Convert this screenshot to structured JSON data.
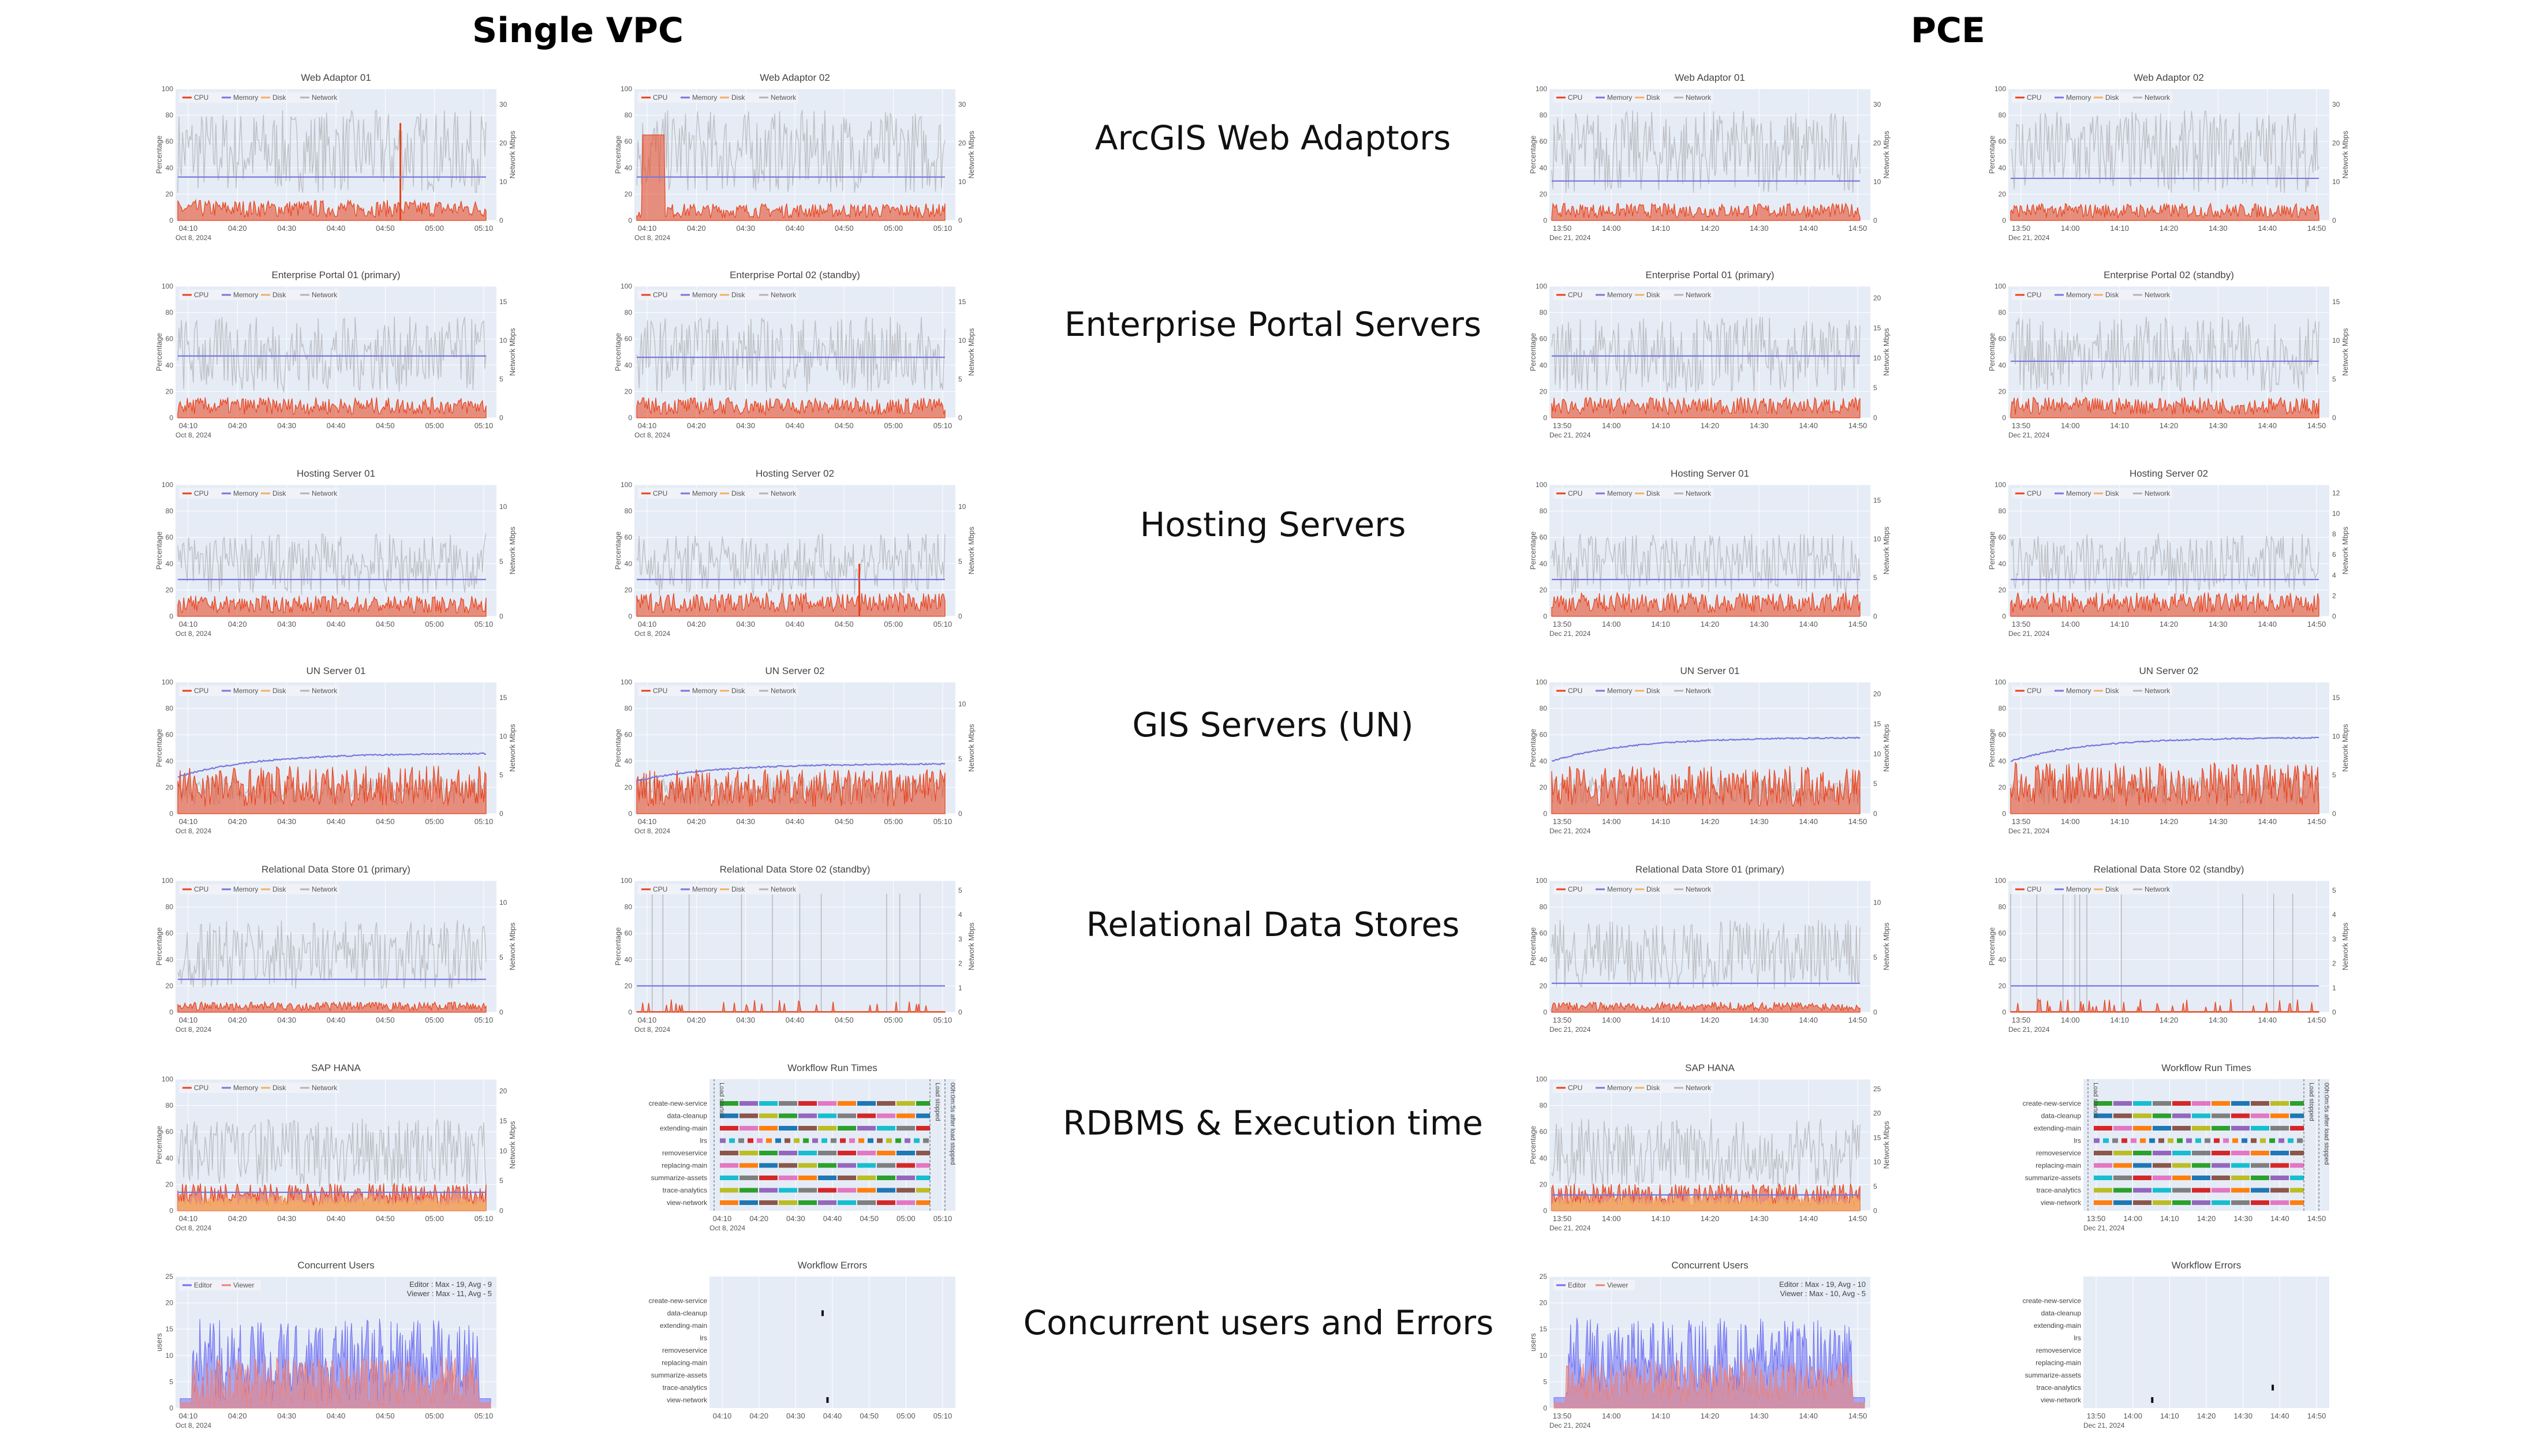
{
  "headers": {
    "left": "Single VPC",
    "right": "PCE"
  },
  "row_labels": [
    "ArcGIS Web Adaptors",
    "Enterprise Portal Servers",
    "Hosting Servers",
    "GIS Servers (UN)",
    "Relational Data Stores",
    "RDBMS & Execution time",
    "Concurrent users and Errors"
  ],
  "legend_labels": [
    "CPU",
    "Memory",
    "Disk",
    "Network"
  ],
  "axis_labels": {
    "y_left": "Percentage",
    "y_right": "Network Mbps",
    "users": "users"
  },
  "series_colors": {
    "cpu": "#e8421b",
    "memory": "#7777dd",
    "disk": "#f2b066",
    "network": "#b4b4b8",
    "editor": "#6f6ff2",
    "viewer": "#ef7f73"
  },
  "workflows": [
    "create-new-service",
    "data-cleanup",
    "extending-main",
    "lrs",
    "removeservice",
    "replacing-main",
    "summarize-assets",
    "trace-analytics",
    "view-network"
  ],
  "workflow_annotations": [
    "Load started",
    "Load stopped",
    "00h:0m:5s after load stopped"
  ],
  "chart_data": [
    {
      "type": "line",
      "title": "Web Adaptor 01",
      "env": "vpc",
      "x_ticks": [
        "04:10",
        "04:20",
        "04:30",
        "04:40",
        "04:50",
        "05:00",
        "05:10"
      ],
      "date": "Oct 8, 2024",
      "ylim": [
        0,
        100
      ],
      "y_ticks": [
        "0",
        "20",
        "40",
        "60",
        "80",
        "100"
      ],
      "y2_ticks": [
        "0",
        "10",
        "20",
        "30"
      ],
      "cpu_level": 12,
      "memory_level": 33,
      "network_level": 60,
      "spikes": [
        74
      ]
    },
    {
      "type": "line",
      "title": "Web Adaptor 02",
      "env": "vpc",
      "x_ticks": [
        "04:10",
        "04:20",
        "04:30",
        "04:40",
        "04:50",
        "05:00",
        "05:10"
      ],
      "date": "Oct 8, 2024",
      "ylim": [
        0,
        100
      ],
      "y_ticks": [
        "0",
        "20",
        "40",
        "60",
        "80",
        "100"
      ],
      "y2_ticks": [
        "0",
        "10",
        "20",
        "30"
      ],
      "cpu_level": 10,
      "memory_level": 33,
      "network_level": 60,
      "cpu_burst": 65
    },
    {
      "type": "line",
      "title": "Web Adaptor 01",
      "env": "pce",
      "x_ticks": [
        "13:50",
        "14:00",
        "14:10",
        "14:20",
        "14:30",
        "14:40",
        "14:50"
      ],
      "date": "Dec 21, 2024",
      "ylim": [
        0,
        100
      ],
      "y_ticks": [
        "0",
        "20",
        "40",
        "60",
        "80",
        "100"
      ],
      "y2_ticks": [
        "0",
        "10",
        "20",
        "30"
      ],
      "cpu_level": 10,
      "memory_level": 30,
      "network_level": 60
    },
    {
      "type": "line",
      "title": "Web Adaptor 02",
      "env": "pce",
      "x_ticks": [
        "13:50",
        "14:00",
        "14:10",
        "14:20",
        "14:30",
        "14:40",
        "14:50"
      ],
      "date": "Dec 21, 2024",
      "ylim": [
        0,
        100
      ],
      "y_ticks": [
        "0",
        "20",
        "40",
        "60",
        "80",
        "100"
      ],
      "y2_ticks": [
        "0",
        "10",
        "20",
        "30"
      ],
      "cpu_level": 10,
      "memory_level": 32,
      "network_level": 60
    },
    {
      "type": "line",
      "title": "Enterprise Portal 01 (primary)",
      "env": "vpc",
      "x_ticks": [
        "04:10",
        "04:20",
        "04:30",
        "04:40",
        "04:50",
        "05:00",
        "05:10"
      ],
      "date": "Oct 8, 2024",
      "ylim": [
        0,
        100
      ],
      "y_ticks": [
        "0",
        "20",
        "40",
        "60",
        "80",
        "100"
      ],
      "y2_ticks": [
        "0",
        "5",
        "10",
        "15"
      ],
      "cpu_level": 12,
      "memory_level": 47,
      "network_level": 55
    },
    {
      "type": "line",
      "title": "Enterprise Portal 02 (standby)",
      "env": "vpc",
      "x_ticks": [
        "04:10",
        "04:20",
        "04:30",
        "04:40",
        "04:50",
        "05:00",
        "05:10"
      ],
      "date": "Oct 8, 2024",
      "ylim": [
        0,
        100
      ],
      "y_ticks": [
        "0",
        "20",
        "40",
        "60",
        "80",
        "100"
      ],
      "y2_ticks": [
        "0",
        "5",
        "10",
        "15"
      ],
      "cpu_level": 12,
      "memory_level": 46,
      "network_level": 55
    },
    {
      "type": "line",
      "title": "Enterprise Portal 01 (primary)",
      "env": "pce",
      "x_ticks": [
        "13:50",
        "14:00",
        "14:10",
        "14:20",
        "14:30",
        "14:40",
        "14:50"
      ],
      "date": "Dec 21, 2024",
      "ylim": [
        0,
        100
      ],
      "y_ticks": [
        "0",
        "20",
        "40",
        "60",
        "80",
        "100"
      ],
      "y2_ticks": [
        "0",
        "5",
        "10",
        "15",
        "20"
      ],
      "cpu_level": 12,
      "memory_level": 47,
      "network_level": 55
    },
    {
      "type": "line",
      "title": "Enterprise Portal 02 (standby)",
      "env": "pce",
      "x_ticks": [
        "13:50",
        "14:00",
        "14:10",
        "14:20",
        "14:30",
        "14:40",
        "14:50"
      ],
      "date": "Dec 21, 2024",
      "ylim": [
        0,
        100
      ],
      "y_ticks": [
        "0",
        "20",
        "40",
        "60",
        "80",
        "100"
      ],
      "y2_ticks": [
        "0",
        "5",
        "10",
        "15"
      ],
      "cpu_level": 12,
      "memory_level": 43,
      "network_level": 55
    },
    {
      "type": "line",
      "title": "Hosting Server 01",
      "env": "vpc",
      "x_ticks": [
        "04:10",
        "04:20",
        "04:30",
        "04:40",
        "04:50",
        "05:00",
        "05:10"
      ],
      "date": "Oct 8, 2024",
      "ylim": [
        0,
        100
      ],
      "y_ticks": [
        "0",
        "20",
        "40",
        "60",
        "80",
        "100"
      ],
      "y2_ticks": [
        "0",
        "5",
        "10"
      ],
      "cpu_level": 12,
      "memory_level": 28,
      "network_level": 45
    },
    {
      "type": "line",
      "title": "Hosting Server 02",
      "env": "vpc",
      "x_ticks": [
        "04:10",
        "04:20",
        "04:30",
        "04:40",
        "04:50",
        "05:00",
        "05:10"
      ],
      "date": "Oct 8, 2024",
      "ylim": [
        0,
        100
      ],
      "y_ticks": [
        "0",
        "20",
        "40",
        "60",
        "80",
        "100"
      ],
      "y2_ticks": [
        "0",
        "5",
        "10"
      ],
      "cpu_level": 14,
      "memory_level": 28,
      "network_level": 45,
      "spikes": [
        40
      ]
    },
    {
      "type": "line",
      "title": "Hosting Server 01",
      "env": "pce",
      "x_ticks": [
        "13:50",
        "14:00",
        "14:10",
        "14:20",
        "14:30",
        "14:40",
        "14:50"
      ],
      "date": "Dec 21, 2024",
      "ylim": [
        0,
        100
      ],
      "y_ticks": [
        "0",
        "20",
        "40",
        "60",
        "80",
        "100"
      ],
      "y2_ticks": [
        "0",
        "5",
        "10",
        "15"
      ],
      "cpu_level": 14,
      "memory_level": 28,
      "network_level": 45
    },
    {
      "type": "line",
      "title": "Hosting Server 02",
      "env": "pce",
      "x_ticks": [
        "13:50",
        "14:00",
        "14:10",
        "14:20",
        "14:30",
        "14:40",
        "14:50"
      ],
      "date": "Dec 21, 2024",
      "ylim": [
        0,
        100
      ],
      "y_ticks": [
        "0",
        "20",
        "40",
        "60",
        "80",
        "100"
      ],
      "y2_ticks": [
        "0",
        "2",
        "4",
        "6",
        "8",
        "10",
        "12"
      ],
      "cpu_level": 14,
      "memory_level": 28,
      "network_level": 45
    },
    {
      "type": "line",
      "title": "UN Server 01",
      "env": "vpc",
      "x_ticks": [
        "04:10",
        "04:20",
        "04:30",
        "04:40",
        "04:50",
        "05:00",
        "05:10"
      ],
      "date": "Oct 8, 2024",
      "ylim": [
        0,
        100
      ],
      "y_ticks": [
        "0",
        "20",
        "40",
        "60",
        "80",
        "100"
      ],
      "y2_ticks": [
        "0",
        "5",
        "10",
        "15"
      ],
      "cpu_level": 28,
      "memory_start": 28,
      "memory_end": 46,
      "network_level": 20
    },
    {
      "type": "line",
      "title": "UN Server 02",
      "env": "vpc",
      "x_ticks": [
        "04:10",
        "04:20",
        "04:30",
        "04:40",
        "04:50",
        "05:00",
        "05:10"
      ],
      "date": "Oct 8, 2024",
      "ylim": [
        0,
        100
      ],
      "y_ticks": [
        "0",
        "20",
        "40",
        "60",
        "80",
        "100"
      ],
      "y2_ticks": [
        "0",
        "5",
        "10"
      ],
      "cpu_level": 26,
      "memory_start": 25,
      "memory_end": 38,
      "network_level": 20
    },
    {
      "type": "line",
      "title": "UN Server 01",
      "env": "pce",
      "x_ticks": [
        "13:50",
        "14:00",
        "14:10",
        "14:20",
        "14:30",
        "14:40",
        "14:50"
      ],
      "date": "Dec 21, 2024",
      "ylim": [
        0,
        100
      ],
      "y_ticks": [
        "0",
        "20",
        "40",
        "60",
        "80",
        "100"
      ],
      "y2_ticks": [
        "0",
        "5",
        "10",
        "15",
        "20"
      ],
      "cpu_level": 28,
      "memory_start": 40,
      "memory_end": 58,
      "network_level": 20
    },
    {
      "type": "line",
      "title": "UN Server 02",
      "env": "pce",
      "x_ticks": [
        "13:50",
        "14:00",
        "14:10",
        "14:20",
        "14:30",
        "14:40",
        "14:50"
      ],
      "date": "Dec 21, 2024",
      "ylim": [
        0,
        100
      ],
      "y_ticks": [
        "0",
        "20",
        "40",
        "60",
        "80",
        "100"
      ],
      "y2_ticks": [
        "0",
        "5",
        "10",
        "15"
      ],
      "cpu_level": 30,
      "memory_start": 40,
      "memory_end": 58,
      "network_level": 20
    },
    {
      "type": "line",
      "title": "Relational Data Store 01 (primary)",
      "env": "vpc",
      "x_ticks": [
        "04:10",
        "04:20",
        "04:30",
        "04:40",
        "04:50",
        "05:00",
        "05:10"
      ],
      "date": "Oct 8, 2024",
      "ylim": [
        0,
        100
      ],
      "y_ticks": [
        "0",
        "20",
        "40",
        "60",
        "80",
        "100"
      ],
      "y2_ticks": [
        "0",
        "5",
        "10"
      ],
      "cpu_level": 6,
      "memory_level": 25,
      "network_level": 50
    },
    {
      "type": "line",
      "title": "Relational Data Store 02 (standby)",
      "env": "vpc",
      "x_ticks": [
        "04:10",
        "04:20",
        "04:30",
        "04:40",
        "04:50",
        "05:00",
        "05:10"
      ],
      "date": "Oct 8, 2024",
      "ylim": [
        0,
        100
      ],
      "y_ticks": [
        "0",
        "20",
        "40",
        "60",
        "80",
        "100"
      ],
      "y2_ticks": [
        "0",
        "1",
        "2",
        "3",
        "4",
        "5"
      ],
      "cpu_level": 3,
      "memory_level": 20,
      "network_level": 90,
      "sparse": true
    },
    {
      "type": "line",
      "title": "Relational Data Store 01 (primary)",
      "env": "pce",
      "x_ticks": [
        "13:50",
        "14:00",
        "14:10",
        "14:20",
        "14:30",
        "14:40",
        "14:50"
      ],
      "date": "Dec 21, 2024",
      "ylim": [
        0,
        100
      ],
      "y_ticks": [
        "0",
        "20",
        "40",
        "60",
        "80",
        "100"
      ],
      "y2_ticks": [
        "0",
        "5",
        "10"
      ],
      "cpu_level": 6,
      "memory_level": 22,
      "network_level": 50
    },
    {
      "type": "line",
      "title": "Relational Data Store 02 (standby)",
      "env": "pce",
      "x_ticks": [
        "13:50",
        "14:00",
        "14:10",
        "14:20",
        "14:30",
        "14:40",
        "14:50"
      ],
      "date": "Dec 21, 2024",
      "ylim": [
        0,
        100
      ],
      "y_ticks": [
        "0",
        "20",
        "40",
        "60",
        "80",
        "100"
      ],
      "y2_ticks": [
        "0",
        "1",
        "2",
        "3",
        "4",
        "5"
      ],
      "cpu_level": 3,
      "memory_level": 20,
      "network_level": 90,
      "sparse": true
    },
    {
      "type": "line",
      "title": "SAP HANA",
      "env": "vpc",
      "x_ticks": [
        "04:10",
        "04:20",
        "04:30",
        "04:40",
        "04:50",
        "05:00",
        "05:10"
      ],
      "date": "Oct 8, 2024",
      "ylim": [
        0,
        100
      ],
      "y_ticks": [
        "0",
        "20",
        "40",
        "60",
        "80",
        "100"
      ],
      "y2_ticks": [
        "0",
        "5",
        "10",
        "15",
        "20"
      ],
      "cpu_level": 16,
      "memory_level": 14,
      "network_level": 50,
      "disk_level": 8
    },
    {
      "type": "bar",
      "title": "Workflow Run Times",
      "env": "vpc",
      "x_ticks": [
        "04:10",
        "04:20",
        "04:30",
        "04:40",
        "04:50",
        "05:00",
        "05:10"
      ],
      "date": "Oct 8, 2024"
    },
    {
      "type": "line",
      "title": "SAP HANA",
      "env": "pce",
      "x_ticks": [
        "13:50",
        "14:00",
        "14:10",
        "14:20",
        "14:30",
        "14:40",
        "14:50"
      ],
      "date": "Dec 21, 2024",
      "ylim": [
        0,
        100
      ],
      "y_ticks": [
        "0",
        "20",
        "40",
        "60",
        "80",
        "100"
      ],
      "y2_ticks": [
        "0",
        "5",
        "10",
        "15",
        "20",
        "25"
      ],
      "cpu_level": 16,
      "memory_level": 12,
      "network_level": 50,
      "disk_level": 8
    },
    {
      "type": "bar",
      "title": "Workflow Run Times",
      "env": "pce",
      "x_ticks": [
        "13:50",
        "14:00",
        "14:10",
        "14:20",
        "14:30",
        "14:40",
        "14:50"
      ],
      "date": "Dec 21, 2024"
    },
    {
      "type": "area",
      "title": "Concurrent Users",
      "env": "vpc",
      "x_ticks": [
        "04:10",
        "04:20",
        "04:30",
        "04:40",
        "04:50",
        "05:00",
        "05:10"
      ],
      "date": "Oct 8, 2024",
      "ylim": [
        0,
        25
      ],
      "y_ticks": [
        "0",
        "5",
        "10",
        "15",
        "20",
        "25"
      ],
      "legend": [
        "Editor",
        "Viewer"
      ],
      "annotation": [
        "Editor : Max - 19, Avg - 9",
        "Viewer : Max - 11, Avg - 5"
      ],
      "editor_avg": 9,
      "editor_max": 19,
      "viewer_avg": 5,
      "viewer_max": 11
    },
    {
      "type": "scatter",
      "title": "Workflow Errors",
      "env": "vpc",
      "x_ticks": [
        "04:10",
        "04:20",
        "04:30",
        "04:40",
        "04:50",
        "05:00",
        "05:10"
      ],
      "date": "",
      "points": [
        {
          "x": 0.46,
          "row": 1
        },
        {
          "x": 0.48,
          "row": 8
        }
      ]
    },
    {
      "type": "area",
      "title": "Concurrent Users",
      "env": "pce",
      "x_ticks": [
        "13:50",
        "14:00",
        "14:10",
        "14:20",
        "14:30",
        "14:40",
        "14:50"
      ],
      "date": "Dec 21, 2024",
      "ylim": [
        0,
        25
      ],
      "y_ticks": [
        "0",
        "5",
        "10",
        "15",
        "20",
        "25"
      ],
      "legend": [
        "Editor",
        "Viewer"
      ],
      "annotation": [
        "Editor : Max - 19, Avg - 10",
        "Viewer : Max - 10, Avg - 5"
      ],
      "editor_avg": 10,
      "editor_max": 19,
      "viewer_avg": 5,
      "viewer_max": 10
    },
    {
      "type": "scatter",
      "title": "Workflow Errors",
      "env": "pce",
      "x_ticks": [
        "13:50",
        "14:00",
        "14:10",
        "14:20",
        "14:30",
        "14:40",
        "14:50"
      ],
      "date": "Dec 21, 2024",
      "points": [
        {
          "x": 0.28,
          "row": 8
        },
        {
          "x": 0.77,
          "row": 7
        }
      ]
    }
  ]
}
